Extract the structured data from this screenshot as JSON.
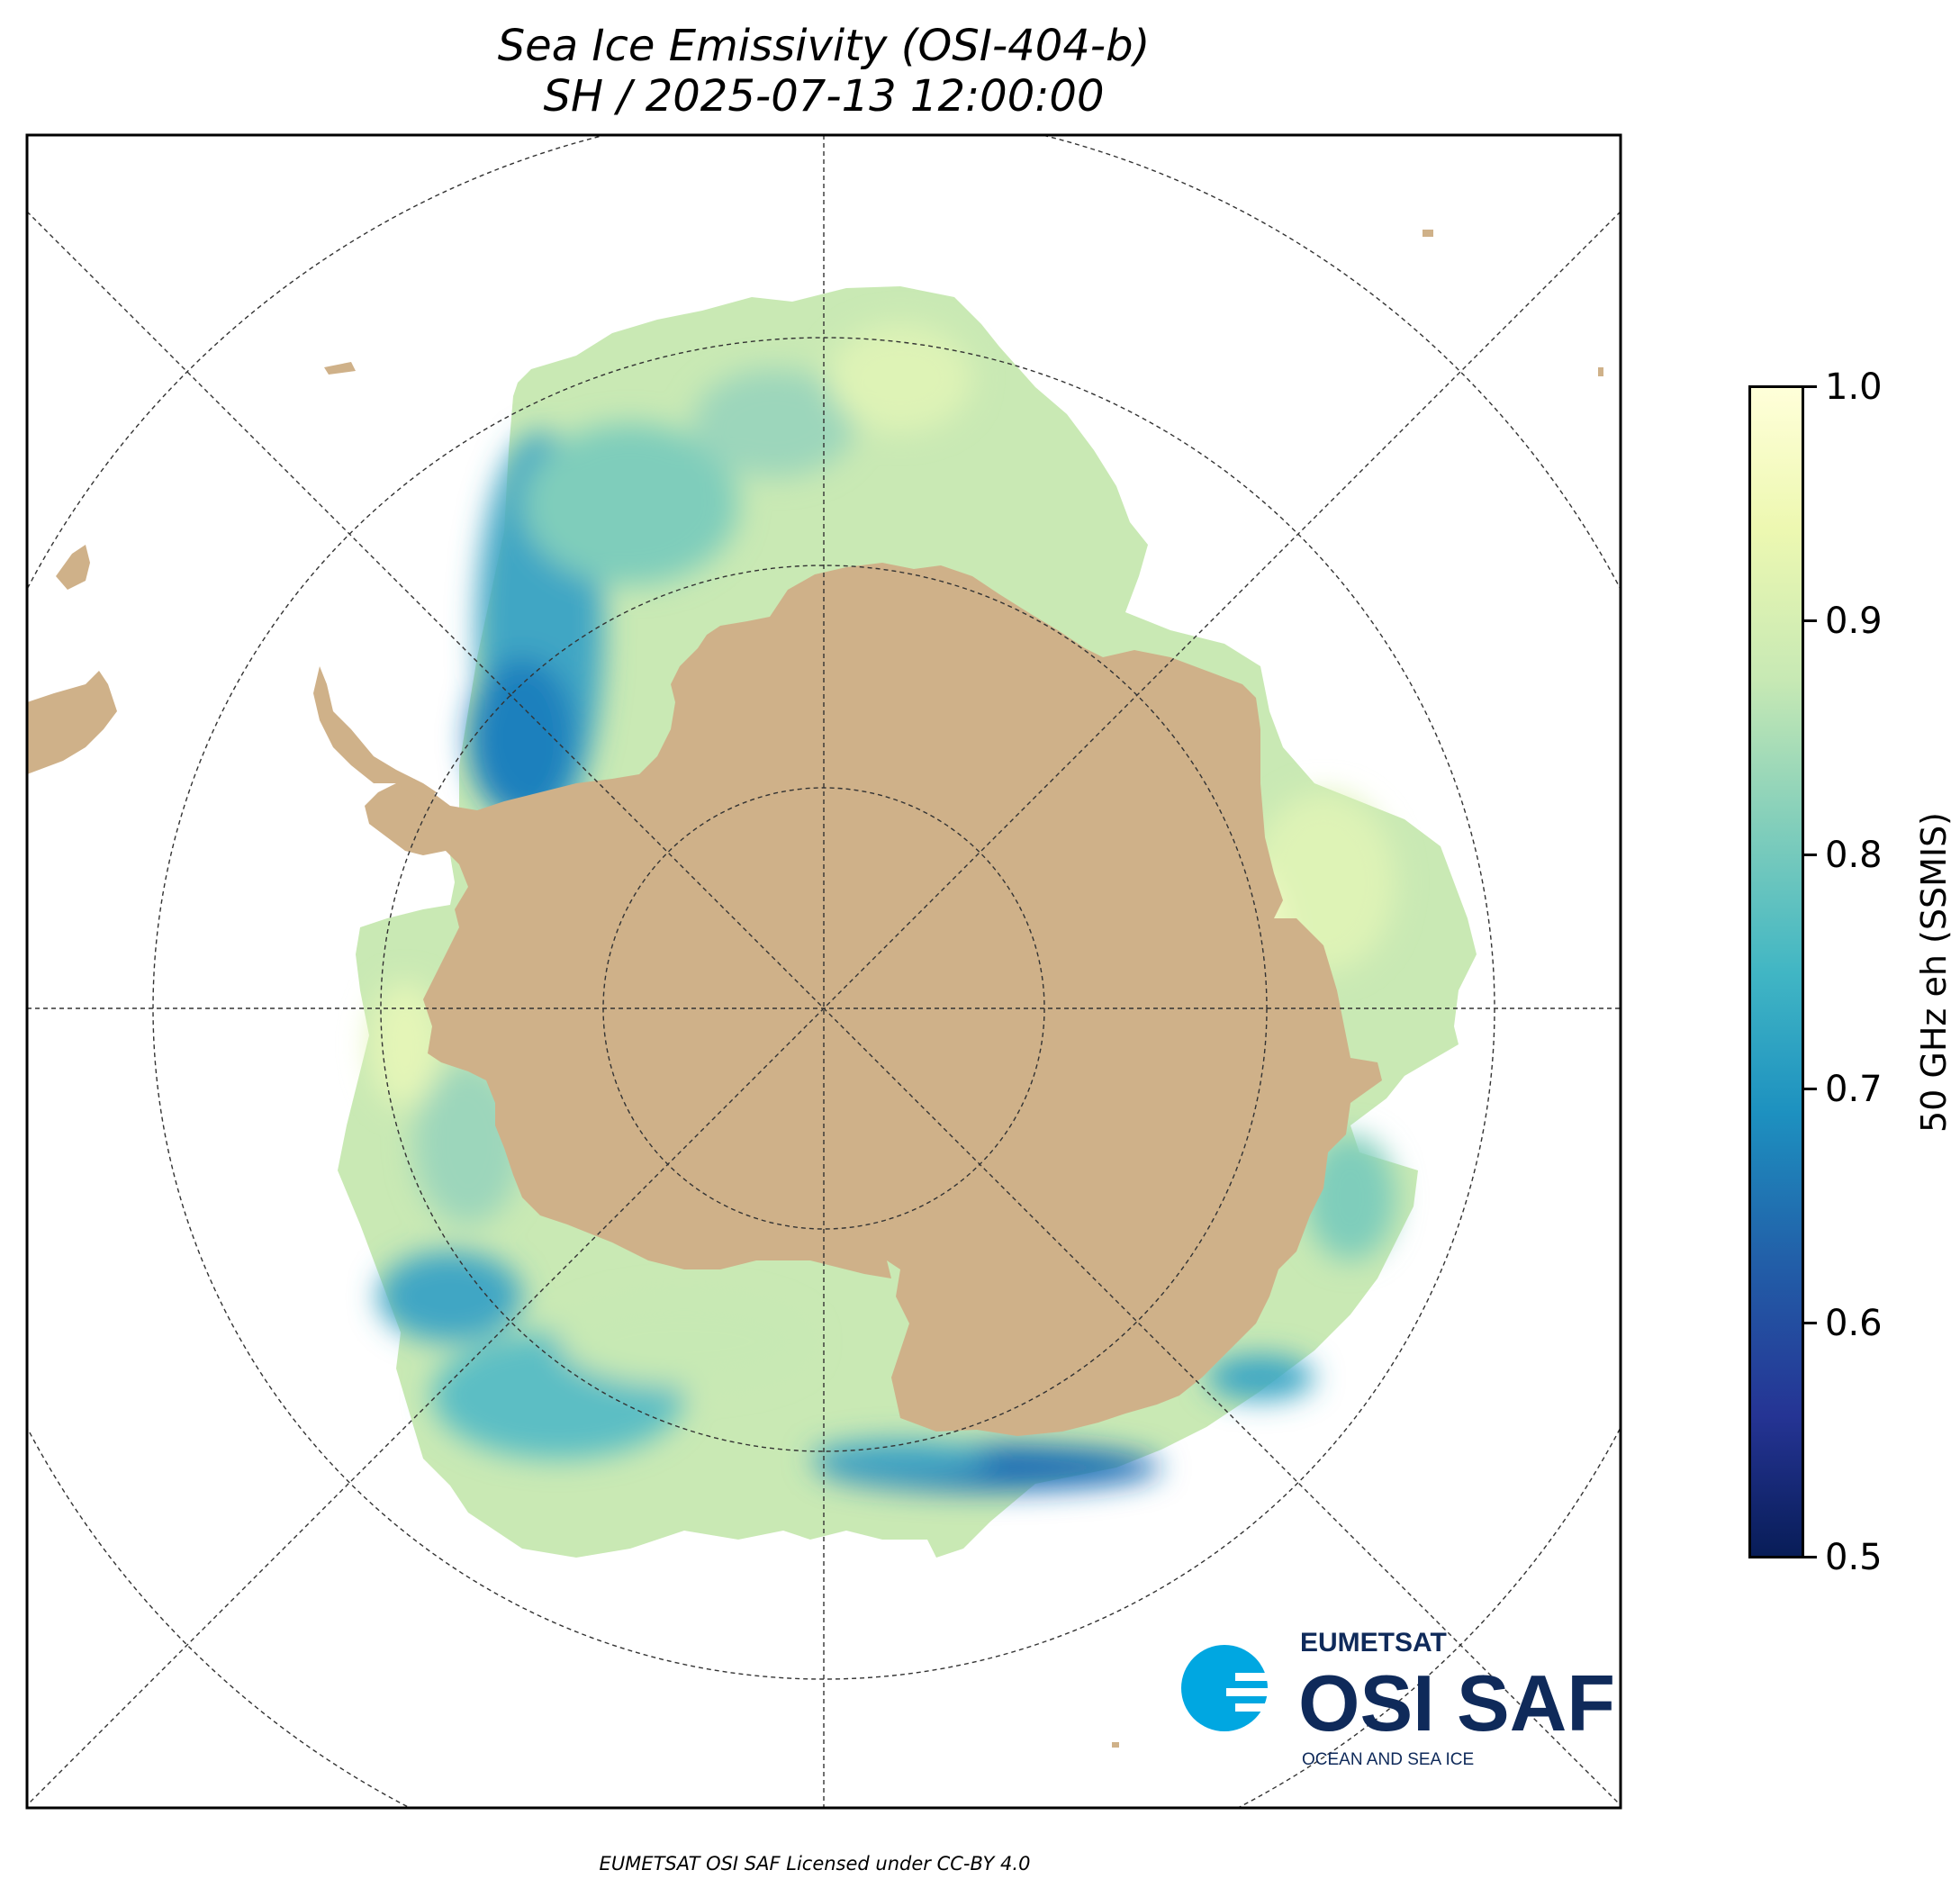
{
  "title": {
    "line1": "Sea Ice Emissivity (OSI-404-b)",
    "line2": "SH / 2025-07-13 12:00:00"
  },
  "map": {
    "projection": "south polar stereographic",
    "colormap": "YlGnBu_r",
    "land_color": "#cfb189",
    "graticule": "dashed"
  },
  "colorbar": {
    "label": "50 GHz eh (SSMIS)",
    "ticks": [
      "1.0",
      "0.9",
      "0.8",
      "0.7",
      "0.6",
      "0.5"
    ],
    "range": [
      0.5,
      1.0
    ],
    "colors": [
      "#ffffd9",
      "#edf8b1",
      "#c7e9b4",
      "#7fcdbb",
      "#41b6c4",
      "#1d91c0",
      "#225ea8",
      "#253494",
      "#081d58"
    ]
  },
  "logo": {
    "org": "EUMETSAT",
    "name": "OSI SAF",
    "tagline": "OCEAN AND SEA ICE",
    "color": "#0f2a5a",
    "accent": "#00a7e1"
  },
  "footer": "EUMETSAT OSI SAF Licensed under CC-BY 4.0"
}
